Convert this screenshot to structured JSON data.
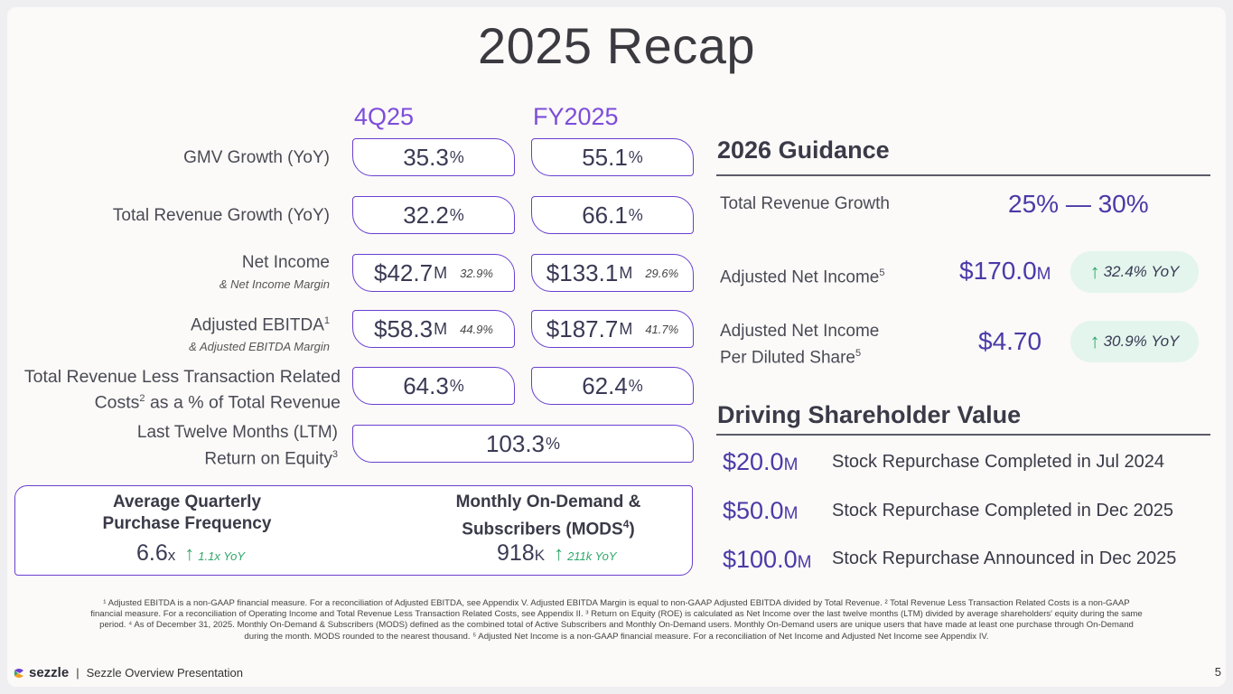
{
  "title": "2025 Recap",
  "columns": {
    "q": "4Q25",
    "fy": "FY2025"
  },
  "rows": {
    "gmv": {
      "label": "GMV Growth (YoY)",
      "q": "35.3",
      "q_unit": "%",
      "fy": "55.1",
      "fy_unit": "%"
    },
    "rev": {
      "label": "Total Revenue Growth (YoY)",
      "q": "32.2",
      "q_unit": "%",
      "fy": "66.1",
      "fy_unit": "%"
    },
    "ni": {
      "label": "Net Income",
      "sub": "& Net Income Margin",
      "q": "$42.7",
      "q_unit": "M",
      "q_margin": "32.9%",
      "fy": "$133.1",
      "fy_unit": "M",
      "fy_margin": "29.6%"
    },
    "ebitda": {
      "label": "Adjusted EBITDA",
      "sup": "1",
      "sub": "& Adjusted EBITDA Margin",
      "q": "$58.3",
      "q_unit": "M",
      "q_margin": "44.9%",
      "fy": "$187.7",
      "fy_unit": "M",
      "fy_margin": "41.7%"
    },
    "trltc": {
      "label_1": "Total Revenue Less Transaction Related",
      "label_2a": "Costs",
      "sup": "2",
      "label_2b": " as a % of Total Revenue",
      "q": "64.3",
      "q_unit": "%",
      "fy": "62.4",
      "fy_unit": "%"
    },
    "roe": {
      "label_1": "Last Twelve Months (LTM)",
      "label_2": "Return on Equity",
      "sup": "3",
      "value": "103.3",
      "unit": "%"
    }
  },
  "bottom": {
    "freq": {
      "head_1": "Average Quarterly",
      "head_2": "Purchase Frequency",
      "value": "6.6",
      "unit": "x",
      "yoy": "1.1x YoY"
    },
    "mods": {
      "head_1": "Monthly On-Demand &",
      "head_2a": "Subscribers (MODS",
      "sup": "4",
      "head_2b": ")",
      "value": "918",
      "unit": "K",
      "yoy": "211k YoY"
    }
  },
  "guidance": {
    "title": "2026 Guidance",
    "rev_label": "Total Revenue Growth",
    "rev_value": "25% — 30%",
    "ani_label": "Adjusted Net Income",
    "ani_sup": "5",
    "ani_value": "$170.0",
    "ani_unit": "M",
    "ani_yoy": "32.4% YoY",
    "eps_label_1": "Adjusted Net Income",
    "eps_label_2": "Per Diluted Share",
    "eps_sup": "5",
    "eps_value": "$4.70",
    "eps_yoy": "30.9% YoY"
  },
  "shareholder": {
    "title": "Driving Shareholder Value",
    "items": [
      {
        "amount": "$20.0",
        "unit": "M",
        "text": "Stock Repurchase Completed in Jul 2024"
      },
      {
        "amount": "$50.0",
        "unit": "M",
        "text": "Stock Repurchase Completed in Dec 2025"
      },
      {
        "amount": "$100.0",
        "unit": "M",
        "text": "Stock Repurchase Announced in Dec 2025"
      }
    ]
  },
  "footnote": "¹ Adjusted EBITDA is a non-GAAP financial measure. For a reconciliation of Adjusted EBITDA, see Appendix V. Adjusted EBITDA Margin is equal to non-GAAP Adjusted EBITDA divided by Total Revenue. ² Total Revenue Less Transaction Related Costs is a non-GAAP financial measure. For a reconciliation of Operating Income and Total Revenue Less Transaction Related Costs, see Appendix II. ³ Return on Equity (ROE) is calculated as Net Income over the last twelve months (LTM) divided by average shareholders' equity during the same period. ⁴ As of December 31, 2025. Monthly On-Demand & Subscribers (MODS) defined as the combined total of Active Subscribers and Monthly On-Demand users. Monthly On-Demand users are unique users that have made at least one purchase through On-Demand during the month. MODS rounded to the nearest thousand. ⁵ Adjusted Net Income is a non-GAAP financial measure. For a reconciliation of Net Income and Adjusted Net Income see Appendix IV.",
  "footer": {
    "brand": "sezzle",
    "separator": "|",
    "presentation": "Sezzle Overview Presentation",
    "page": "5"
  },
  "colors": {
    "accent": "#6a3fd1",
    "accent_text": "#7d4cdb",
    "up": "#2fa86a",
    "badge_bg": "#e3f5ec"
  }
}
